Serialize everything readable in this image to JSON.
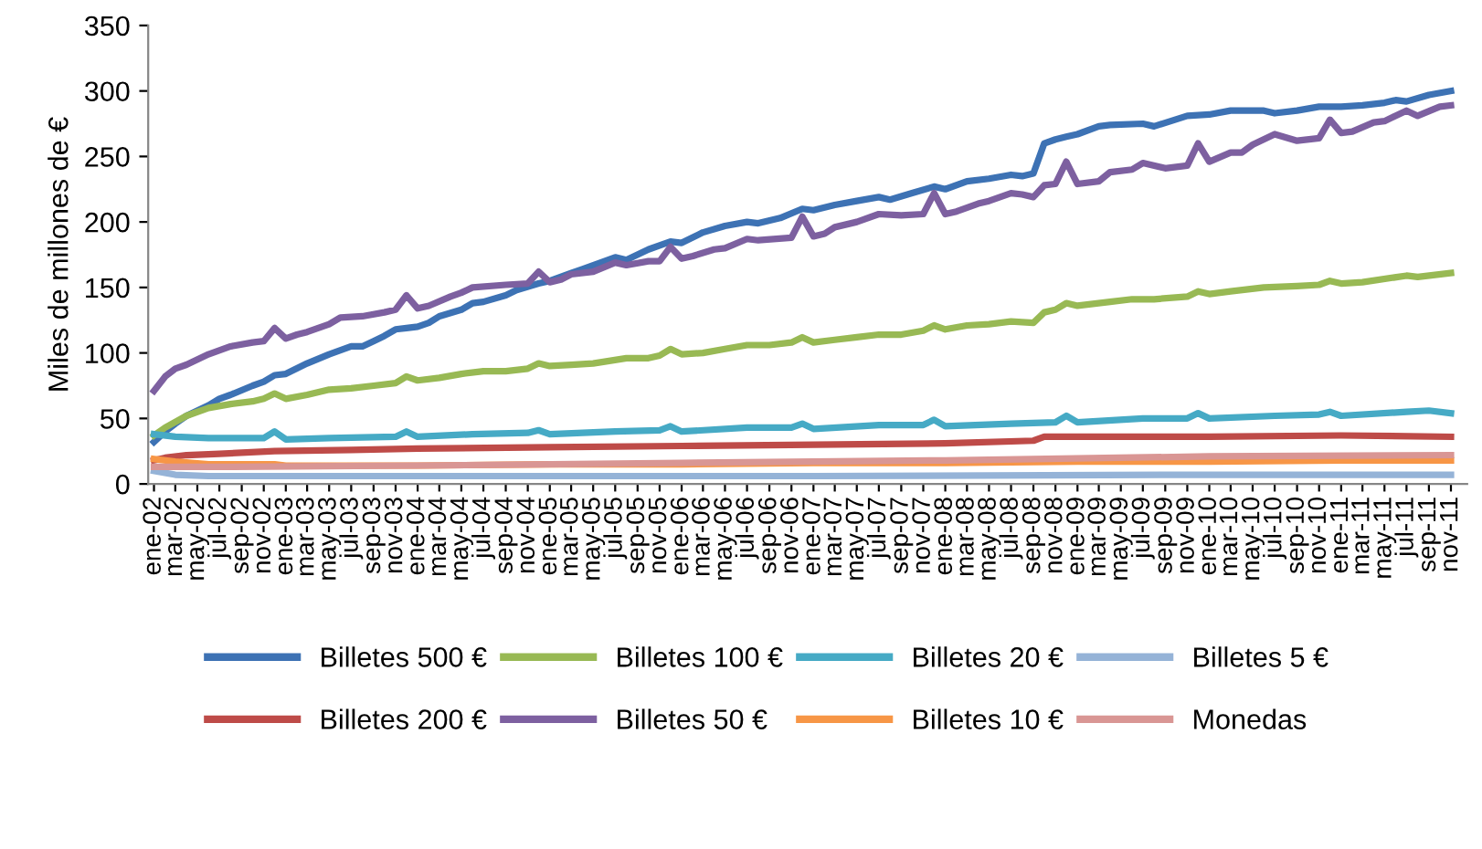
{
  "chart_data": {
    "type": "line",
    "ylabel": "Miles de millones de €",
    "xlim": [
      "2001-12-16",
      "2011-12-16"
    ],
    "ylim": [
      0,
      350
    ],
    "yticks": [
      0,
      50,
      100,
      150,
      200,
      250,
      300,
      350
    ],
    "xticks": [
      {
        "value": "2002-01",
        "label": "ene-02"
      },
      {
        "value": "2002-03",
        "label": "mar-02"
      },
      {
        "value": "2002-05",
        "label": "may-02"
      },
      {
        "value": "2002-07",
        "label": "jul-02"
      },
      {
        "value": "2002-09",
        "label": "sep-02"
      },
      {
        "value": "2002-11",
        "label": "nov-02"
      },
      {
        "value": "2003-01",
        "label": "ene-03"
      },
      {
        "value": "2003-03",
        "label": "mar-03"
      },
      {
        "value": "2003-05",
        "label": "may-03"
      },
      {
        "value": "2003-07",
        "label": "jul-03"
      },
      {
        "value": "2003-09",
        "label": "sep-03"
      },
      {
        "value": "2003-11",
        "label": "nov-03"
      },
      {
        "value": "2004-01",
        "label": "ene-04"
      },
      {
        "value": "2004-03",
        "label": "mar-04"
      },
      {
        "value": "2004-05",
        "label": "may-04"
      },
      {
        "value": "2004-07",
        "label": "jul-04"
      },
      {
        "value": "2004-09",
        "label": "sep-04"
      },
      {
        "value": "2004-11",
        "label": "nov-04"
      },
      {
        "value": "2005-01",
        "label": "ene-05"
      },
      {
        "value": "2005-03",
        "label": "mar-05"
      },
      {
        "value": "2005-05",
        "label": "may-05"
      },
      {
        "value": "2005-07",
        "label": "jul-05"
      },
      {
        "value": "2005-09",
        "label": "sep-05"
      },
      {
        "value": "2005-11",
        "label": "nov-05"
      },
      {
        "value": "2006-01",
        "label": "ene-06"
      },
      {
        "value": "2006-03",
        "label": "mar-06"
      },
      {
        "value": "2006-05",
        "label": "may-06"
      },
      {
        "value": "2006-07",
        "label": "jul-06"
      },
      {
        "value": "2006-09",
        "label": "sep-06"
      },
      {
        "value": "2006-11",
        "label": "nov-06"
      },
      {
        "value": "2007-01",
        "label": "ene-07"
      },
      {
        "value": "2007-03",
        "label": "mar-07"
      },
      {
        "value": "2007-05",
        "label": "may-07"
      },
      {
        "value": "2007-07",
        "label": "jul-07"
      },
      {
        "value": "2007-09",
        "label": "sep-07"
      },
      {
        "value": "2007-11",
        "label": "nov-07"
      },
      {
        "value": "2008-01",
        "label": "ene-08"
      },
      {
        "value": "2008-03",
        "label": "mar-08"
      },
      {
        "value": "2008-05",
        "label": "may-08"
      },
      {
        "value": "2008-07",
        "label": "jul-08"
      },
      {
        "value": "2008-09",
        "label": "sep-08"
      },
      {
        "value": "2008-11",
        "label": "nov-08"
      },
      {
        "value": "2009-01",
        "label": "ene-09"
      },
      {
        "value": "2009-03",
        "label": "mar-09"
      },
      {
        "value": "2009-05",
        "label": "may-09"
      },
      {
        "value": "2009-07",
        "label": "jul-09"
      },
      {
        "value": "2009-09",
        "label": "sep-09"
      },
      {
        "value": "2009-11",
        "label": "nov-09"
      },
      {
        "value": "2010-01",
        "label": "ene-10"
      },
      {
        "value": "2010-03",
        "label": "mar-10"
      },
      {
        "value": "2010-05",
        "label": "may-10"
      },
      {
        "value": "2010-07",
        "label": "jul-10"
      },
      {
        "value": "2010-09",
        "label": "sep-10"
      },
      {
        "value": "2010-11",
        "label": "nov-10"
      },
      {
        "value": "2011-01",
        "label": "ene-11"
      },
      {
        "value": "2011-03",
        "label": "mar-11"
      },
      {
        "value": "2011-05",
        "label": "may-11"
      },
      {
        "value": "2011-07",
        "label": "jul-11"
      },
      {
        "value": "2011-09",
        "label": "sep-11"
      },
      {
        "value": "2011-11",
        "label": "nov-11"
      }
    ],
    "grid": false,
    "legend": "bottom",
    "marker": "none",
    "line_style": "solid",
    "series": [
      {
        "name": "Billetes 500 €",
        "color": "#3d72b4",
        "x": [
          "2002-01",
          "2002-02",
          "2002-03",
          "2002-04",
          "2002-06",
          "2002-07",
          "2002-08",
          "2002-10",
          "2002-11",
          "2002-12",
          "2003-01",
          "2003-03",
          "2003-05",
          "2003-07",
          "2003-08",
          "2003-09",
          "2003-10",
          "2003-11",
          "2003-12",
          "2004-01",
          "2004-02",
          "2004-03",
          "2004-05",
          "2004-06",
          "2004-07",
          "2004-09",
          "2004-10",
          "2004-12",
          "2005-01",
          "2005-03",
          "2005-04",
          "2005-07",
          "2005-08",
          "2005-10",
          "2005-12",
          "2006-01",
          "2006-03",
          "2006-05",
          "2006-07",
          "2006-08",
          "2006-10",
          "2006-12",
          "2007-01",
          "2007-03",
          "2007-05",
          "2007-07",
          "2007-08",
          "2007-10",
          "2007-12",
          "2008-01",
          "2008-03",
          "2008-05",
          "2008-07",
          "2008-08",
          "2008-09",
          "2008-10",
          "2008-11",
          "2008-12",
          "2009-01",
          "2009-03",
          "2009-04",
          "2009-07",
          "2009-08",
          "2009-11",
          "2010-01",
          "2010-03",
          "2010-06",
          "2010-07",
          "2010-09",
          "2010-11",
          "2011-01",
          "2011-03",
          "2011-05",
          "2011-06",
          "2011-07",
          "2011-09",
          "2011-11"
        ],
        "values": [
          32,
          40,
          46,
          52,
          60,
          65,
          68,
          75,
          78,
          83,
          84,
          92,
          99,
          105,
          105,
          109,
          113,
          118,
          119,
          120,
          123,
          128,
          133,
          138,
          139,
          144,
          148,
          153,
          155,
          161,
          164,
          173,
          171,
          179,
          185,
          184,
          192,
          197,
          200,
          199,
          203,
          210,
          209,
          213,
          216,
          219,
          217,
          222,
          227,
          225,
          231,
          233,
          236,
          235,
          237,
          260,
          263,
          265,
          267,
          273,
          274,
          275,
          273,
          281,
          282,
          285,
          285,
          283,
          285,
          288,
          288,
          289,
          291,
          293,
          292,
          297,
          300
        ]
      },
      {
        "name": "Billetes 200 €",
        "color": "#be4b48",
        "x": [
          "2002-01",
          "2002-02",
          "2002-04",
          "2002-07",
          "2002-12",
          "2003-07",
          "2004-01",
          "2005-01",
          "2006-01",
          "2007-01",
          "2008-01",
          "2008-09",
          "2008-10",
          "2010-01",
          "2011-01",
          "2011-11"
        ],
        "values": [
          18,
          20,
          22,
          23,
          25,
          26,
          27,
          28,
          29,
          30,
          31,
          33,
          36,
          36,
          37,
          36
        ]
      },
      {
        "name": "Billetes 100 €",
        "color": "#98b954",
        "x": [
          "2002-01",
          "2002-02",
          "2002-04",
          "2002-06",
          "2002-08",
          "2002-10",
          "2002-11",
          "2002-12",
          "2003-01",
          "2003-03",
          "2003-05",
          "2003-07",
          "2003-09",
          "2003-11",
          "2003-12",
          "2004-01",
          "2004-03",
          "2004-05",
          "2004-07",
          "2004-09",
          "2004-11",
          "2004-12",
          "2005-01",
          "2005-03",
          "2005-05",
          "2005-08",
          "2005-10",
          "2005-11",
          "2005-12",
          "2006-01",
          "2006-03",
          "2006-05",
          "2006-07",
          "2006-09",
          "2006-11",
          "2006-12",
          "2007-01",
          "2007-03",
          "2007-05",
          "2007-07",
          "2007-09",
          "2007-11",
          "2007-12",
          "2008-01",
          "2008-03",
          "2008-05",
          "2008-07",
          "2008-09",
          "2008-10",
          "2008-11",
          "2008-12",
          "2009-01",
          "2009-04",
          "2009-06",
          "2009-08",
          "2009-11",
          "2009-12",
          "2010-01",
          "2010-03",
          "2010-06",
          "2010-09",
          "2010-11",
          "2010-12",
          "2011-01",
          "2011-03",
          "2011-07",
          "2011-08",
          "2011-11"
        ],
        "values": [
          37,
          43,
          52,
          58,
          61,
          63,
          65,
          69,
          65,
          68,
          72,
          73,
          75,
          77,
          82,
          79,
          81,
          84,
          86,
          86,
          88,
          92,
          90,
          91,
          92,
          96,
          96,
          98,
          103,
          99,
          100,
          103,
          106,
          106,
          108,
          112,
          108,
          110,
          112,
          114,
          114,
          117,
          121,
          118,
          121,
          122,
          124,
          123,
          131,
          133,
          138,
          136,
          139,
          141,
          141,
          143,
          147,
          145,
          147,
          150,
          151,
          152,
          155,
          153,
          154,
          159,
          158,
          161
        ]
      },
      {
        "name": "Billetes 50 €",
        "color": "#7d60a0",
        "x": [
          "2002-01",
          "2002-02",
          "2002-03",
          "2002-04",
          "2002-06",
          "2002-08",
          "2002-10",
          "2002-11",
          "2002-12",
          "2003-01",
          "2003-02",
          "2003-03",
          "2003-05",
          "2003-06",
          "2003-08",
          "2003-10",
          "2003-11",
          "2003-12",
          "2004-01",
          "2004-02",
          "2004-04",
          "2004-05",
          "2004-06",
          "2004-09",
          "2004-11",
          "2004-12",
          "2005-01",
          "2005-02",
          "2005-03",
          "2005-05",
          "2005-07",
          "2005-08",
          "2005-10",
          "2005-11",
          "2005-12",
          "2006-01",
          "2006-02",
          "2006-04",
          "2006-05",
          "2006-07",
          "2006-08",
          "2006-11",
          "2006-12",
          "2007-01",
          "2007-02",
          "2007-03",
          "2007-05",
          "2007-07",
          "2007-09",
          "2007-11",
          "2007-12",
          "2008-01",
          "2008-02",
          "2008-04",
          "2008-05",
          "2008-07",
          "2008-08",
          "2008-09",
          "2008-10",
          "2008-11",
          "2008-12",
          "2009-01",
          "2009-03",
          "2009-04",
          "2009-06",
          "2009-07",
          "2009-09",
          "2009-11",
          "2009-12",
          "2010-01",
          "2010-03",
          "2010-04",
          "2010-05",
          "2010-07",
          "2010-09",
          "2010-11",
          "2010-12",
          "2011-01",
          "2011-02",
          "2011-04",
          "2011-05",
          "2011-07",
          "2011-08",
          "2011-10",
          "2011-11"
        ],
        "values": [
          71,
          82,
          88,
          91,
          99,
          105,
          108,
          109,
          119,
          111,
          114,
          116,
          122,
          127,
          128,
          131,
          133,
          144,
          134,
          136,
          143,
          146,
          150,
          152,
          153,
          162,
          154,
          156,
          160,
          162,
          169,
          167,
          170,
          170,
          181,
          172,
          174,
          179,
          180,
          187,
          186,
          188,
          204,
          189,
          191,
          196,
          200,
          206,
          205,
          206,
          222,
          206,
          208,
          214,
          216,
          222,
          221,
          219,
          228,
          229,
          246,
          229,
          231,
          238,
          240,
          245,
          241,
          243,
          260,
          246,
          253,
          253,
          259,
          267,
          262,
          264,
          278,
          268,
          269,
          276,
          277,
          285,
          281,
          288,
          289
        ]
      },
      {
        "name": "Billetes 20 €",
        "color": "#46aac5",
        "x": [
          "2002-01",
          "2002-03",
          "2002-06",
          "2002-11",
          "2002-12",
          "2003-01",
          "2003-05",
          "2003-11",
          "2003-12",
          "2004-01",
          "2004-06",
          "2004-11",
          "2004-12",
          "2005-01",
          "2005-07",
          "2005-11",
          "2005-12",
          "2006-01",
          "2006-07",
          "2006-11",
          "2006-12",
          "2007-01",
          "2007-07",
          "2007-11",
          "2007-12",
          "2008-01",
          "2008-07",
          "2008-11",
          "2008-12",
          "2009-01",
          "2009-07",
          "2009-11",
          "2009-12",
          "2010-01",
          "2010-07",
          "2010-11",
          "2010-12",
          "2011-01",
          "2011-07",
          "2011-09",
          "2011-11"
        ],
        "values": [
          38,
          36,
          35,
          35,
          40,
          34,
          35,
          36,
          40,
          36,
          38,
          39,
          41,
          38,
          40,
          41,
          44,
          40,
          43,
          43,
          46,
          42,
          45,
          45,
          49,
          44,
          46,
          47,
          52,
          47,
          50,
          50,
          54,
          50,
          52,
          53,
          55,
          52,
          55,
          56,
          54
        ]
      },
      {
        "name": "Billetes 10 €",
        "color": "#f79646",
        "x": [
          "2002-01",
          "2002-03",
          "2002-06",
          "2002-12",
          "2003-01",
          "2004-01",
          "2005-01",
          "2006-01",
          "2007-01",
          "2008-01",
          "2009-01",
          "2010-01",
          "2011-01",
          "2011-11"
        ],
        "values": [
          19,
          17,
          15,
          15,
          14,
          14,
          15,
          15,
          16,
          16,
          17,
          17,
          18,
          18
        ]
      },
      {
        "name": "Billetes 5 €",
        "color": "#95b3d7",
        "x": [
          "2002-01",
          "2002-03",
          "2002-06",
          "2004-01",
          "2007-01",
          "2010-01",
          "2011-11"
        ],
        "values": [
          10,
          7,
          6,
          6,
          6,
          7,
          7
        ]
      },
      {
        "name": "Monedas",
        "color": "#d99694",
        "x": [
          "2002-01",
          "2002-07",
          "2004-01",
          "2006-01",
          "2008-01",
          "2010-01",
          "2011-11"
        ],
        "values": [
          13,
          13,
          14,
          16,
          18,
          21,
          22
        ]
      }
    ]
  }
}
